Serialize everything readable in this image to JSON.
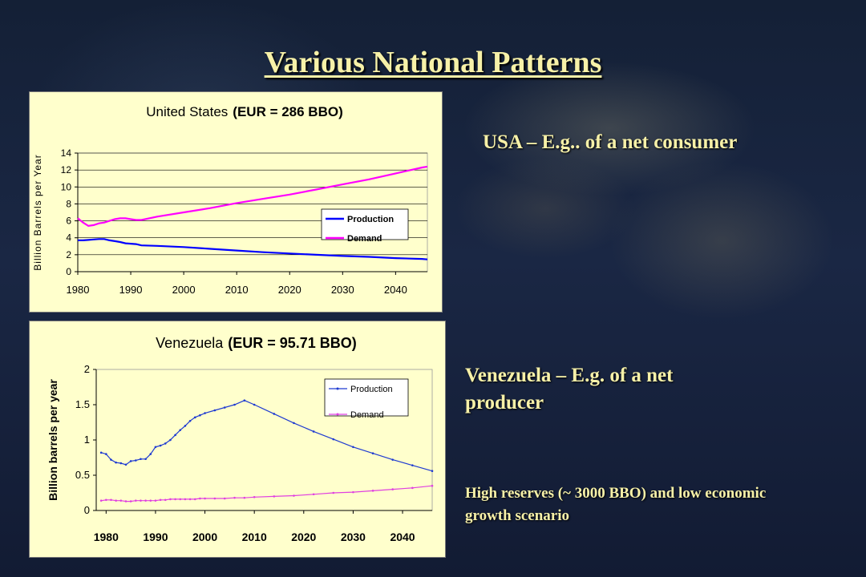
{
  "slide": {
    "title": "Various National Patterns",
    "usa_note": "USA – E.g.. of a net consumer",
    "venezuela_note": "Venezuela – E.g. of a net producer",
    "scenario_note": "High reserves (~ 3000 BBO) and low economic growth scenario"
  },
  "colors": {
    "title_text": "#f7f1a8",
    "chart_background": "#ffffcc"
  },
  "chart_data": [
    {
      "type": "line",
      "title": "United States",
      "subtitle": "(EUR = 286 BBO)",
      "xlabel": "",
      "ylabel": "Billion Barrels per Year",
      "xlim": [
        1980,
        2046
      ],
      "ylim": [
        0,
        14
      ],
      "xticks": [
        1980,
        1990,
        2000,
        2010,
        2020,
        2030,
        2040
      ],
      "yticks": [
        0,
        2,
        4,
        6,
        8,
        10,
        12,
        14
      ],
      "grid": "horizontal",
      "legend": "right",
      "x": [
        1980,
        1981,
        1982,
        1983,
        1984,
        1985,
        1986,
        1987,
        1988,
        1989,
        1990,
        1991,
        1992,
        1995,
        2000,
        2005,
        2010,
        2015,
        2020,
        2025,
        2030,
        2035,
        2040,
        2045,
        2046
      ],
      "series": [
        {
          "name": "Production",
          "color": "#0000ff",
          "values": [
            3.7,
            3.7,
            3.75,
            3.8,
            3.85,
            3.85,
            3.7,
            3.6,
            3.5,
            3.35,
            3.3,
            3.25,
            3.1,
            3.05,
            2.9,
            2.7,
            2.5,
            2.3,
            2.15,
            2.0,
            1.85,
            1.75,
            1.6,
            1.5,
            1.45
          ]
        },
        {
          "name": "Demand",
          "color": "#ff00ff",
          "values": [
            6.3,
            5.8,
            5.4,
            5.5,
            5.7,
            5.8,
            6.0,
            6.2,
            6.3,
            6.3,
            6.2,
            6.1,
            6.1,
            6.5,
            7.0,
            7.5,
            8.1,
            8.6,
            9.1,
            9.7,
            10.3,
            10.9,
            11.6,
            12.3,
            12.4
          ]
        }
      ]
    },
    {
      "type": "line",
      "title": "Venezuela",
      "subtitle": "(EUR = 95.71 BBO)",
      "xlabel": "",
      "ylabel": "Billion barrels per year",
      "xlim": [
        1978,
        2046
      ],
      "ylim": [
        0,
        2
      ],
      "xticks": [
        1980,
        1990,
        2000,
        2010,
        2020,
        2030,
        2040
      ],
      "yticks": [
        0,
        0.5,
        1,
        1.5,
        2
      ],
      "ytick_labels": [
        "0",
        "0.5",
        "1",
        "1.5",
        "2"
      ],
      "grid": "none",
      "legend": "top-right",
      "x": [
        1979,
        1980,
        1981,
        1982,
        1983,
        1984,
        1985,
        1986,
        1987,
        1988,
        1989,
        1990,
        1991,
        1992,
        1993,
        1994,
        1995,
        1996,
        1997,
        1998,
        1999,
        2000,
        2002,
        2004,
        2006,
        2008,
        2010,
        2014,
        2018,
        2022,
        2026,
        2030,
        2034,
        2038,
        2042,
        2046
      ],
      "series": [
        {
          "name": "Production",
          "color": "#1f3bd1",
          "values": [
            0.82,
            0.8,
            0.72,
            0.68,
            0.67,
            0.65,
            0.7,
            0.71,
            0.73,
            0.73,
            0.8,
            0.9,
            0.92,
            0.95,
            1.0,
            1.07,
            1.14,
            1.2,
            1.27,
            1.32,
            1.35,
            1.38,
            1.42,
            1.46,
            1.5,
            1.56,
            1.5,
            1.37,
            1.24,
            1.12,
            1.01,
            0.9,
            0.81,
            0.72,
            0.64,
            0.56
          ]
        },
        {
          "name": "Demand",
          "color": "#e040e0",
          "values": [
            0.14,
            0.15,
            0.15,
            0.14,
            0.14,
            0.13,
            0.13,
            0.14,
            0.14,
            0.14,
            0.14,
            0.14,
            0.15,
            0.15,
            0.16,
            0.16,
            0.16,
            0.16,
            0.16,
            0.16,
            0.17,
            0.17,
            0.17,
            0.17,
            0.18,
            0.18,
            0.19,
            0.2,
            0.21,
            0.23,
            0.25,
            0.26,
            0.28,
            0.3,
            0.32,
            0.35
          ]
        }
      ]
    }
  ]
}
